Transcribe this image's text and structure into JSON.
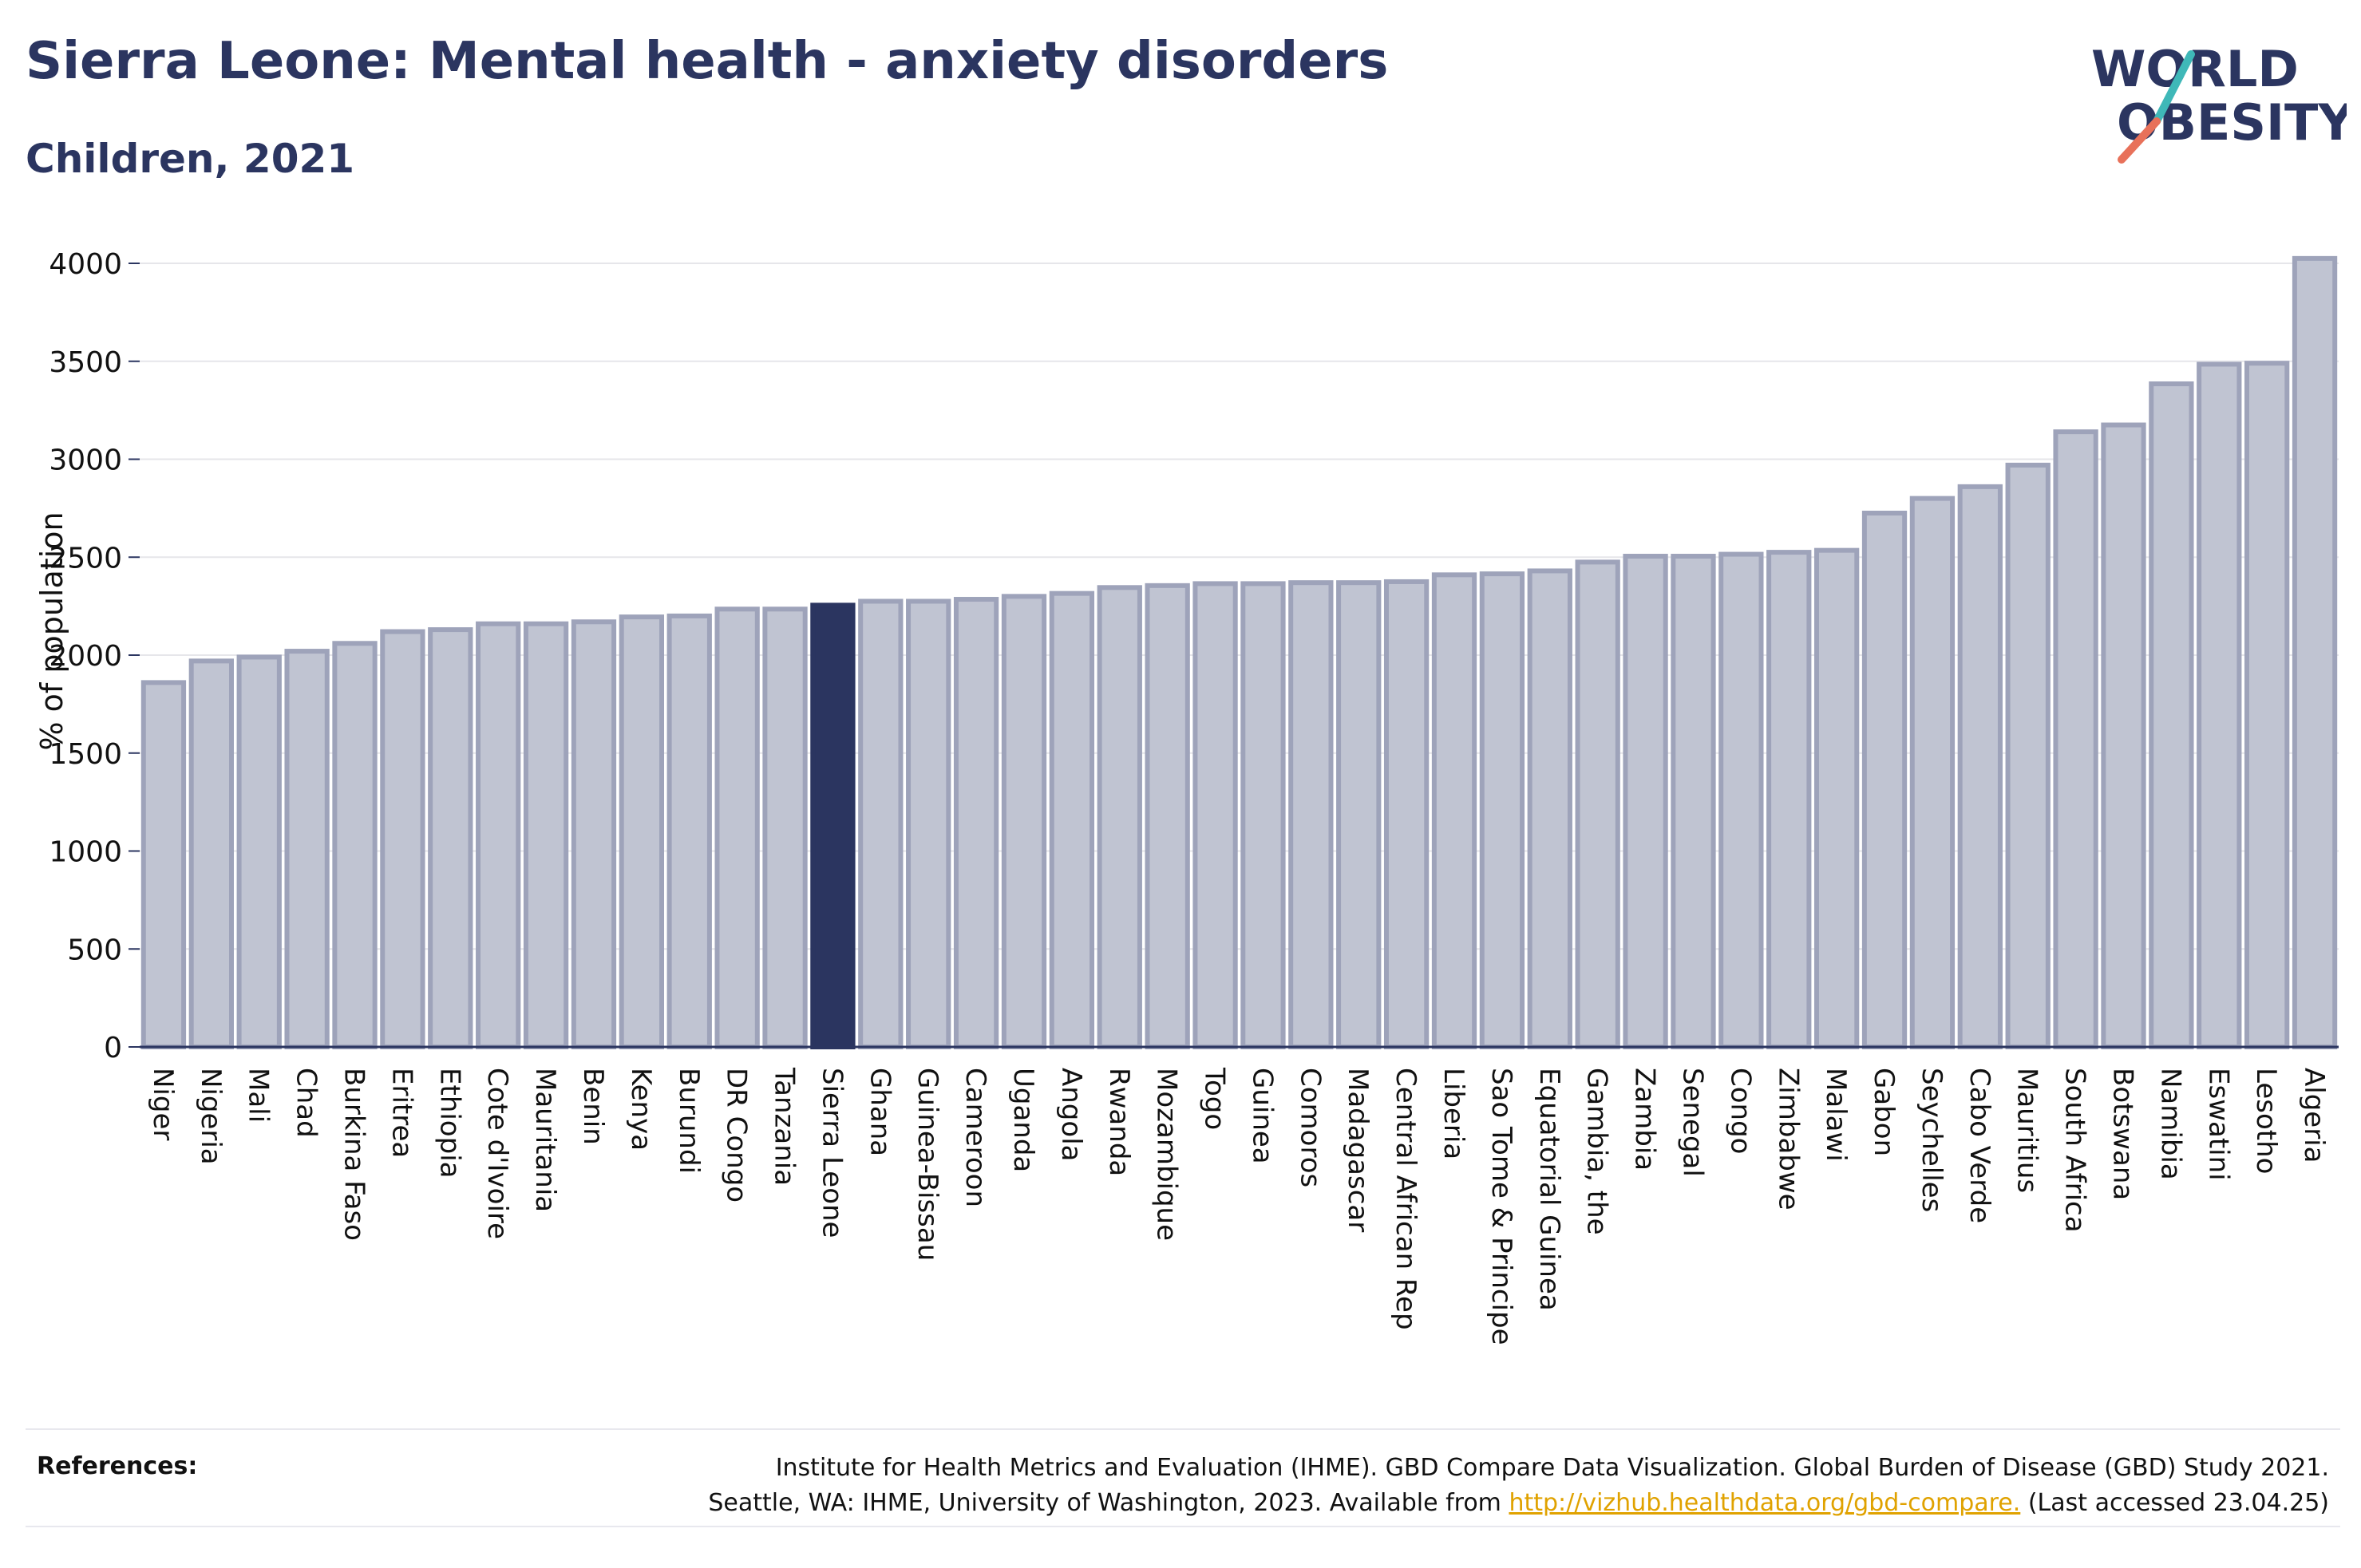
{
  "header": {
    "title": "Sierra Leone: Mental health - anxiety disorders",
    "subtitle": "Children, 2021"
  },
  "logo": {
    "line1": "WORLD",
    "line2": "OBESITY"
  },
  "colors": {
    "bar": "#c0c4d2",
    "bar_border": "#9ea3ba",
    "highlight": "#2b3560",
    "text": "#2b3560",
    "logo_slash_top": "#3fb8b8",
    "logo_slash_bottom": "#e8715a",
    "link": "#e0a200"
  },
  "chart_data": {
    "type": "bar",
    "ylabel": "% of population",
    "ylim": [
      0,
      4000
    ],
    "yticks": [
      0,
      500,
      1000,
      1500,
      2000,
      2500,
      3000,
      3500,
      4000
    ],
    "grid": true,
    "highlight": "Sierra Leone",
    "categories": [
      "Niger",
      "Nigeria",
      "Mali",
      "Chad",
      "Burkina Faso",
      "Eritrea",
      "Ethiopia",
      "Cote d'Ivoire",
      "Mauritania",
      "Benin",
      "Kenya",
      "Burundi",
      "DR Congo",
      "Tanzania",
      "Sierra Leone",
      "Ghana",
      "Guinea-Bissau",
      "Cameroon",
      "Uganda",
      "Angola",
      "Rwanda",
      "Mozambique",
      "Togo",
      "Guinea",
      "Comoros",
      "Madagascar",
      "Central African Rep",
      "Liberia",
      "Sao Tome & Principe",
      "Equatorial Guinea",
      "Gambia, the",
      "Zambia",
      "Senegal",
      "Congo",
      "Zimbabwe",
      "Malawi",
      "Gabon",
      "Seychelles",
      "Cabo Verde",
      "Mauritius",
      "South Africa",
      "Botswana",
      "Namibia",
      "Eswatini",
      "Lesotho",
      "Algeria"
    ],
    "values": [
      1860,
      1970,
      1990,
      2020,
      2060,
      2120,
      2130,
      2160,
      2160,
      2170,
      2195,
      2200,
      2235,
      2235,
      2255,
      2275,
      2275,
      2285,
      2300,
      2315,
      2345,
      2355,
      2365,
      2365,
      2370,
      2370,
      2375,
      2410,
      2415,
      2430,
      2475,
      2505,
      2505,
      2515,
      2525,
      2535,
      2725,
      2800,
      2860,
      2970,
      3140,
      3175,
      3385,
      3485,
      3490,
      4025
    ]
  },
  "references": {
    "label": "References:",
    "line1": "Institute for Health Metrics and Evaluation (IHME). GBD Compare Data Visualization. Global Burden of Disease (GBD) Study 2021.",
    "line2_prefix": "Seattle, WA: IHME, University of Washington, 2023. Available from ",
    "link": "http://vizhub.healthdata.org/gbd-compare.",
    "line2_suffix": " (Last accessed 23.04.25)"
  }
}
